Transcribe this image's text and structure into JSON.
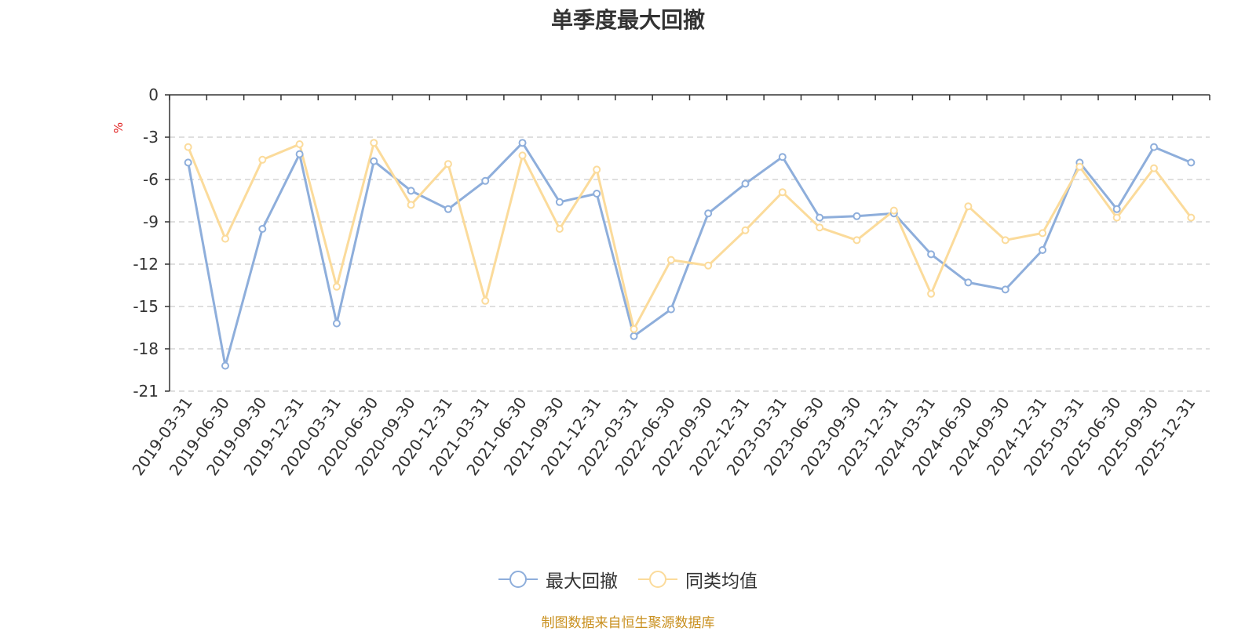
{
  "chart_data": {
    "type": "line",
    "title": "单季度最大回撤",
    "ylabel": "%",
    "ylim": [
      -21,
      0
    ],
    "yticks": [
      0,
      -3,
      -6,
      -9,
      -12,
      -15,
      -18,
      -21
    ],
    "grid": true,
    "legend_position": "bottom",
    "categories": [
      "2019-03-31",
      "2019-06-30",
      "2019-09-30",
      "2019-12-31",
      "2020-03-31",
      "2020-06-30",
      "2020-09-30",
      "2020-12-31",
      "2021-03-31",
      "2021-06-30",
      "2021-09-30",
      "2021-12-31",
      "2022-03-31",
      "2022-06-30",
      "2022-09-30",
      "2022-12-31",
      "2023-03-31",
      "2023-06-30",
      "2023-09-30",
      "2023-12-31",
      "2024-03-31",
      "2024-06-30",
      "2024-09-30",
      "2024-12-31",
      "2025-03-31",
      "2025-06-30",
      "2025-09-30",
      "2025-12-31"
    ],
    "series": [
      {
        "name": "最大回撤",
        "color": "#8eaedb",
        "values": [
          -4.8,
          -19.2,
          -9.5,
          -4.2,
          -16.2,
          -4.7,
          -6.8,
          -8.1,
          -6.1,
          -3.4,
          -7.6,
          -7.0,
          -17.1,
          -15.2,
          -8.4,
          -6.3,
          -4.4,
          -8.7,
          -8.6,
          -8.4,
          -11.3,
          -13.3,
          -13.8,
          -11.0,
          -4.8,
          -8.1,
          -3.7,
          -4.8
        ]
      },
      {
        "name": "同类均值",
        "color": "#fbdb9b",
        "values": [
          -3.7,
          -10.2,
          -4.6,
          -3.5,
          -13.6,
          -3.4,
          -7.8,
          -4.9,
          -14.6,
          -4.3,
          -9.5,
          -5.3,
          -16.6,
          -11.7,
          -12.1,
          -9.6,
          -6.9,
          -9.4,
          -10.3,
          -8.2,
          -14.1,
          -7.9,
          -10.3,
          -9.8,
          -5.1,
          -8.7,
          -5.2,
          -8.7
        ]
      }
    ]
  },
  "source_note": "制图数据来自恒生聚源数据库"
}
